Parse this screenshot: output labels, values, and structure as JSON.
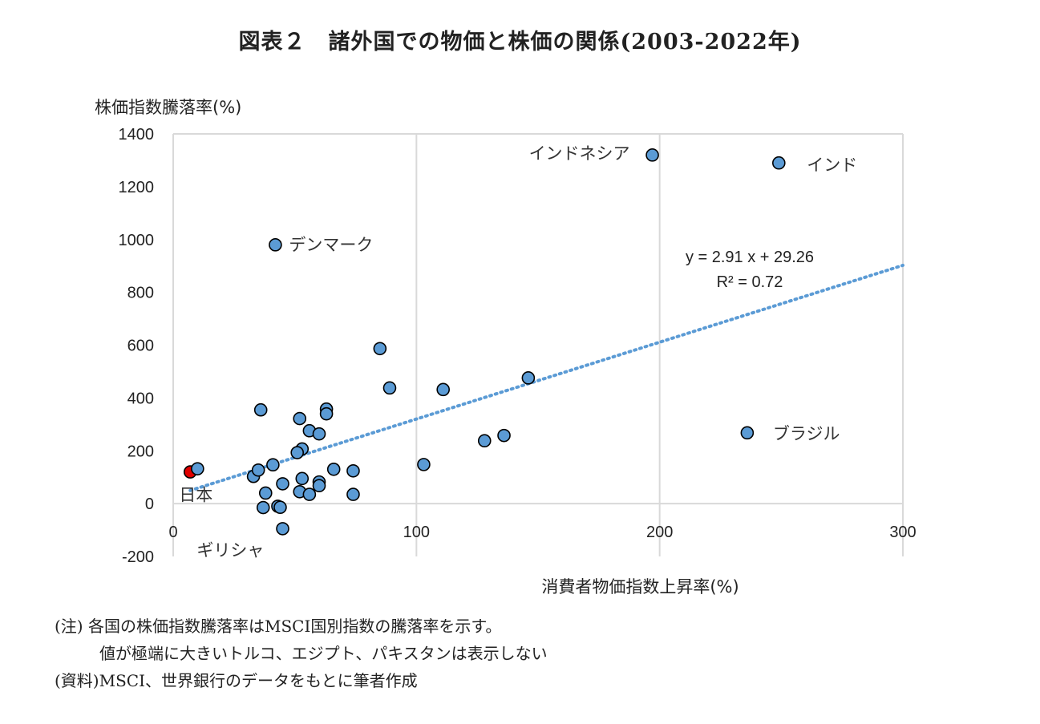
{
  "title": "図表２　諸外国での物価と株価の関係(2003-2022年)",
  "notes": [
    "(注) 各国の株価指数騰落率はMSCI国別指数の騰落率を示す。",
    "値が極端に大きいトルコ、エジプト、パキスタンは表示しない",
    "(資料)MSCI、世界銀行のデータをもとに筆者作成"
  ],
  "colors": {
    "point": "#5b9bd5",
    "highlight": "#e00000",
    "trend": "#5b9bd5",
    "grid": "#d9d9d9"
  },
  "chart_data": {
    "type": "scatter",
    "xlabel": "消費者物価指数上昇率(%)",
    "ylabel": "株価指数騰落率(%)",
    "xlim": [
      0,
      300
    ],
    "ylim": [
      -200,
      1400
    ],
    "xticks": [
      0,
      100,
      200,
      300
    ],
    "yticks": [
      -200,
      0,
      200,
      400,
      600,
      800,
      1000,
      1200,
      1400
    ],
    "grid": "vertical",
    "points": [
      {
        "x": 197,
        "y": 1320,
        "label": "インドネシア"
      },
      {
        "x": 249,
        "y": 1290,
        "label": "インド"
      },
      {
        "x": 42,
        "y": 980,
        "label": "デンマーク"
      },
      {
        "x": 236,
        "y": 268,
        "label": "ブラジル"
      },
      {
        "x": 7,
        "y": 120,
        "label": "日本",
        "highlight": true
      },
      {
        "x": 43,
        "y": -10,
        "label": "ギリシャ"
      },
      {
        "x": 10,
        "y": 132
      },
      {
        "x": 85,
        "y": 587
      },
      {
        "x": 89,
        "y": 438
      },
      {
        "x": 111,
        "y": 432
      },
      {
        "x": 146,
        "y": 476
      },
      {
        "x": 103,
        "y": 148
      },
      {
        "x": 128,
        "y": 238
      },
      {
        "x": 136,
        "y": 258
      },
      {
        "x": 36,
        "y": 355
      },
      {
        "x": 63,
        "y": 358
      },
      {
        "x": 63,
        "y": 340
      },
      {
        "x": 52,
        "y": 322
      },
      {
        "x": 56,
        "y": 276
      },
      {
        "x": 60,
        "y": 264
      },
      {
        "x": 53,
        "y": 207
      },
      {
        "x": 51,
        "y": 193
      },
      {
        "x": 33,
        "y": 103
      },
      {
        "x": 35,
        "y": 127
      },
      {
        "x": 41,
        "y": 147
      },
      {
        "x": 66,
        "y": 130
      },
      {
        "x": 74,
        "y": 124
      },
      {
        "x": 45,
        "y": 75
      },
      {
        "x": 53,
        "y": 95
      },
      {
        "x": 60,
        "y": 82
      },
      {
        "x": 60,
        "y": 68
      },
      {
        "x": 38,
        "y": 40
      },
      {
        "x": 52,
        "y": 45
      },
      {
        "x": 56,
        "y": 35
      },
      {
        "x": 74,
        "y": 35
      },
      {
        "x": 37,
        "y": -15
      },
      {
        "x": 44,
        "y": -14
      },
      {
        "x": 45,
        "y": -95
      }
    ],
    "trendline": {
      "slope": 2.91,
      "intercept": 29.26,
      "equation": "y = 2.91 x + 29.26",
      "r2_label": "R² = 0.72"
    }
  }
}
